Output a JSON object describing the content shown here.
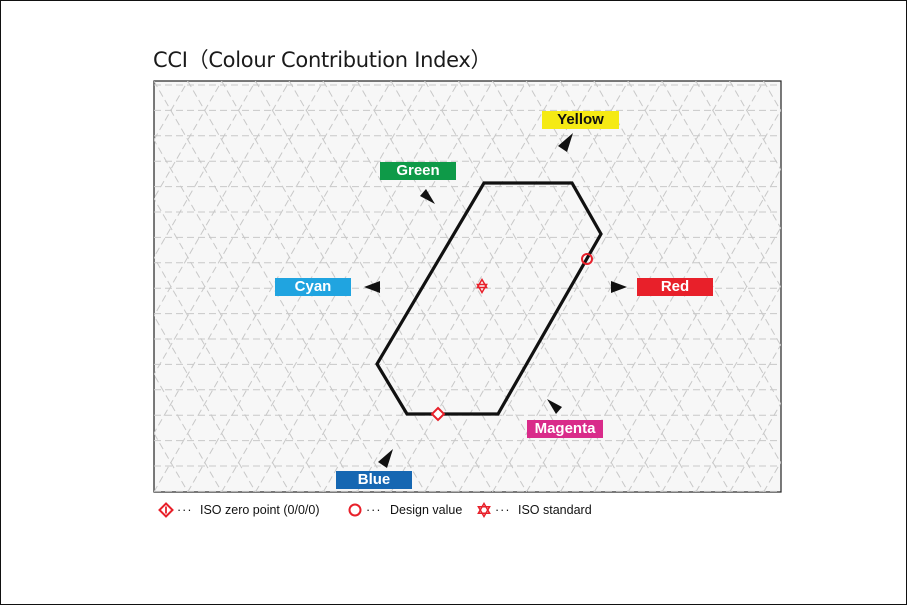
{
  "title": "CCI（Colour Contribution Index）",
  "labels": {
    "yellow": "Yellow",
    "green": "Green",
    "cyan": "Cyan",
    "red": "Red",
    "magenta": "Magenta",
    "blue": "Blue"
  },
  "colors": {
    "yellow": "#f5ea14",
    "green": "#0e9a48",
    "cyan": "#20a4e0",
    "red": "#e8202a",
    "magenta": "#d92b8a",
    "blue": "#1667b2",
    "marker": "#e8202a",
    "outline": "#111111",
    "grid": "#c8c8c8"
  },
  "legend": [
    {
      "icon": "iso-zero-point-icon",
      "text": "ISO zero point (0/0/0)"
    },
    {
      "icon": "design-value-icon",
      "text": "Design value"
    },
    {
      "icon": "iso-standard-icon",
      "text": "ISO standard"
    }
  ]
}
